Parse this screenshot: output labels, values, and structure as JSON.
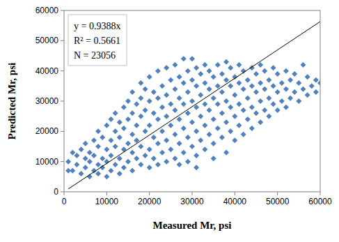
{
  "chart_data": {
    "type": "scatter",
    "x_label": "Measured Mr, psi",
    "y_label": "Predicted Mr, psi",
    "annotations": [
      "y = 0.9388x",
      "R² = 0.5661",
      "N = 23056"
    ],
    "xlim": [
      0,
      60000
    ],
    "ylim": [
      0,
      60000
    ],
    "xticks": [
      0,
      10000,
      20000,
      30000,
      40000,
      50000,
      60000
    ],
    "yticks": [
      0,
      10000,
      20000,
      30000,
      40000,
      50000,
      60000
    ],
    "grid": false,
    "series": [
      {
        "type": "scatter",
        "color": "#4f81bd",
        "marker": "diamond",
        "x": [
          1000,
          1000,
          2000,
          2000,
          3000,
          3000,
          4000,
          4000,
          5000,
          5000,
          5000,
          6000,
          6000,
          6000,
          7000,
          7000,
          7000,
          8000,
          8000,
          8000,
          8000,
          9000,
          9000,
          9000,
          10000,
          10000,
          10000,
          10000,
          11000,
          11000,
          11000,
          11000,
          12000,
          12000,
          12000,
          12000,
          13000,
          13000,
          13000,
          13000,
          14000,
          14000,
          14000,
          14000,
          15000,
          15000,
          15000,
          15000,
          16000,
          16000,
          16000,
          16000,
          16000,
          17000,
          17000,
          17000,
          17000,
          18000,
          18000,
          18000,
          18000,
          18000,
          19000,
          19000,
          19000,
          19000,
          20000,
          20000,
          20000,
          20000,
          20000,
          21000,
          21000,
          21000,
          21000,
          22000,
          22000,
          22000,
          22000,
          22000,
          23000,
          23000,
          23000,
          23000,
          24000,
          24000,
          24000,
          24000,
          24000,
          25000,
          25000,
          25000,
          25000,
          26000,
          26000,
          26000,
          26000,
          26000,
          27000,
          27000,
          27000,
          27000,
          27000,
          28000,
          28000,
          28000,
          28000,
          28000,
          29000,
          29000,
          29000,
          29000,
          29000,
          30000,
          30000,
          30000,
          30000,
          30000,
          31000,
          31000,
          31000,
          31000,
          31000,
          31000,
          32000,
          32000,
          32000,
          32000,
          33000,
          33000,
          33000,
          33000,
          33000,
          34000,
          34000,
          34000,
          34000,
          35000,
          35000,
          35000,
          35000,
          35000,
          36000,
          36000,
          36000,
          36000,
          37000,
          37000,
          37000,
          37000,
          38000,
          38000,
          38000,
          38000,
          38000,
          39000,
          39000,
          39000,
          39000,
          40000,
          40000,
          40000,
          40000,
          41000,
          41000,
          41000,
          41000,
          42000,
          42000,
          42000,
          42000,
          43000,
          43000,
          43000,
          44000,
          44000,
          44000,
          44000,
          45000,
          45000,
          45000,
          46000,
          46000,
          46000,
          46000,
          47000,
          47000,
          47000,
          48000,
          48000,
          48000,
          49000,
          49000,
          49000,
          50000,
          50000,
          50000,
          51000,
          51000,
          52000,
          52000,
          52000,
          53000,
          53000,
          54000,
          54000,
          55000,
          55000,
          56000,
          56000,
          57000,
          57000,
          58000,
          59000,
          59000,
          60000
        ],
        "values": [
          10000,
          7000,
          7000,
          13000,
          9000,
          12000,
          6000,
          14000,
          8000,
          11000,
          16000,
          5000,
          10000,
          13000,
          7000,
          12000,
          17000,
          6000,
          9000,
          15000,
          20000,
          8000,
          11000,
          18000,
          5000,
          10000,
          14000,
          22000,
          7000,
          12000,
          17000,
          24000,
          9000,
          15000,
          20000,
          26000,
          6000,
          11000,
          18000,
          23000,
          8000,
          14000,
          21000,
          28000,
          10000,
          16000,
          24000,
          30000,
          7000,
          13000,
          19000,
          26000,
          33000,
          11000,
          17000,
          22000,
          29000,
          9000,
          15000,
          25000,
          31000,
          36000,
          12000,
          20000,
          27000,
          34000,
          8000,
          14000,
          22000,
          30000,
          38000,
          11000,
          18000,
          26000,
          33000,
          9000,
          16000,
          24000,
          31000,
          40000,
          13000,
          20000,
          28000,
          35000,
          10000,
          17000,
          25000,
          32000,
          41000,
          14000,
          22000,
          29000,
          37000,
          11000,
          19000,
          27000,
          34000,
          42000,
          9000,
          16000,
          24000,
          31000,
          38000,
          13000,
          21000,
          29000,
          36000,
          44000,
          10000,
          18000,
          26000,
          33000,
          40000,
          15000,
          23000,
          30000,
          37000,
          44000,
          8000,
          12000,
          20000,
          28000,
          35000,
          41000,
          17000,
          25000,
          32000,
          39000,
          14000,
          22000,
          29000,
          36000,
          42000,
          19000,
          27000,
          34000,
          40000,
          11000,
          16000,
          24000,
          31000,
          38000,
          21000,
          29000,
          35000,
          42000,
          18000,
          26000,
          33000,
          39000,
          13000,
          23000,
          30000,
          37000,
          43000,
          20000,
          28000,
          35000,
          41000,
          17000,
          25000,
          32000,
          38000,
          22000,
          29000,
          36000,
          42000,
          19000,
          27000,
          34000,
          40000,
          24000,
          31000,
          37000,
          21000,
          28000,
          35000,
          41000,
          26000,
          33000,
          39000,
          23000,
          30000,
          36000,
          42000,
          27000,
          34000,
          40000,
          25000,
          31000,
          37000,
          29000,
          35000,
          41000,
          27000,
          33000,
          39000,
          30000,
          36000,
          28000,
          34000,
          40000,
          31000,
          37000,
          33000,
          39000,
          30000,
          36000,
          34000,
          42000,
          32000,
          38000,
          35000,
          33000,
          37000,
          36000
        ]
      },
      {
        "type": "line",
        "color": "#000000",
        "line_style": "solid",
        "x": [
          1000,
          60000
        ],
        "values": [
          939,
          56328
        ]
      }
    ]
  }
}
